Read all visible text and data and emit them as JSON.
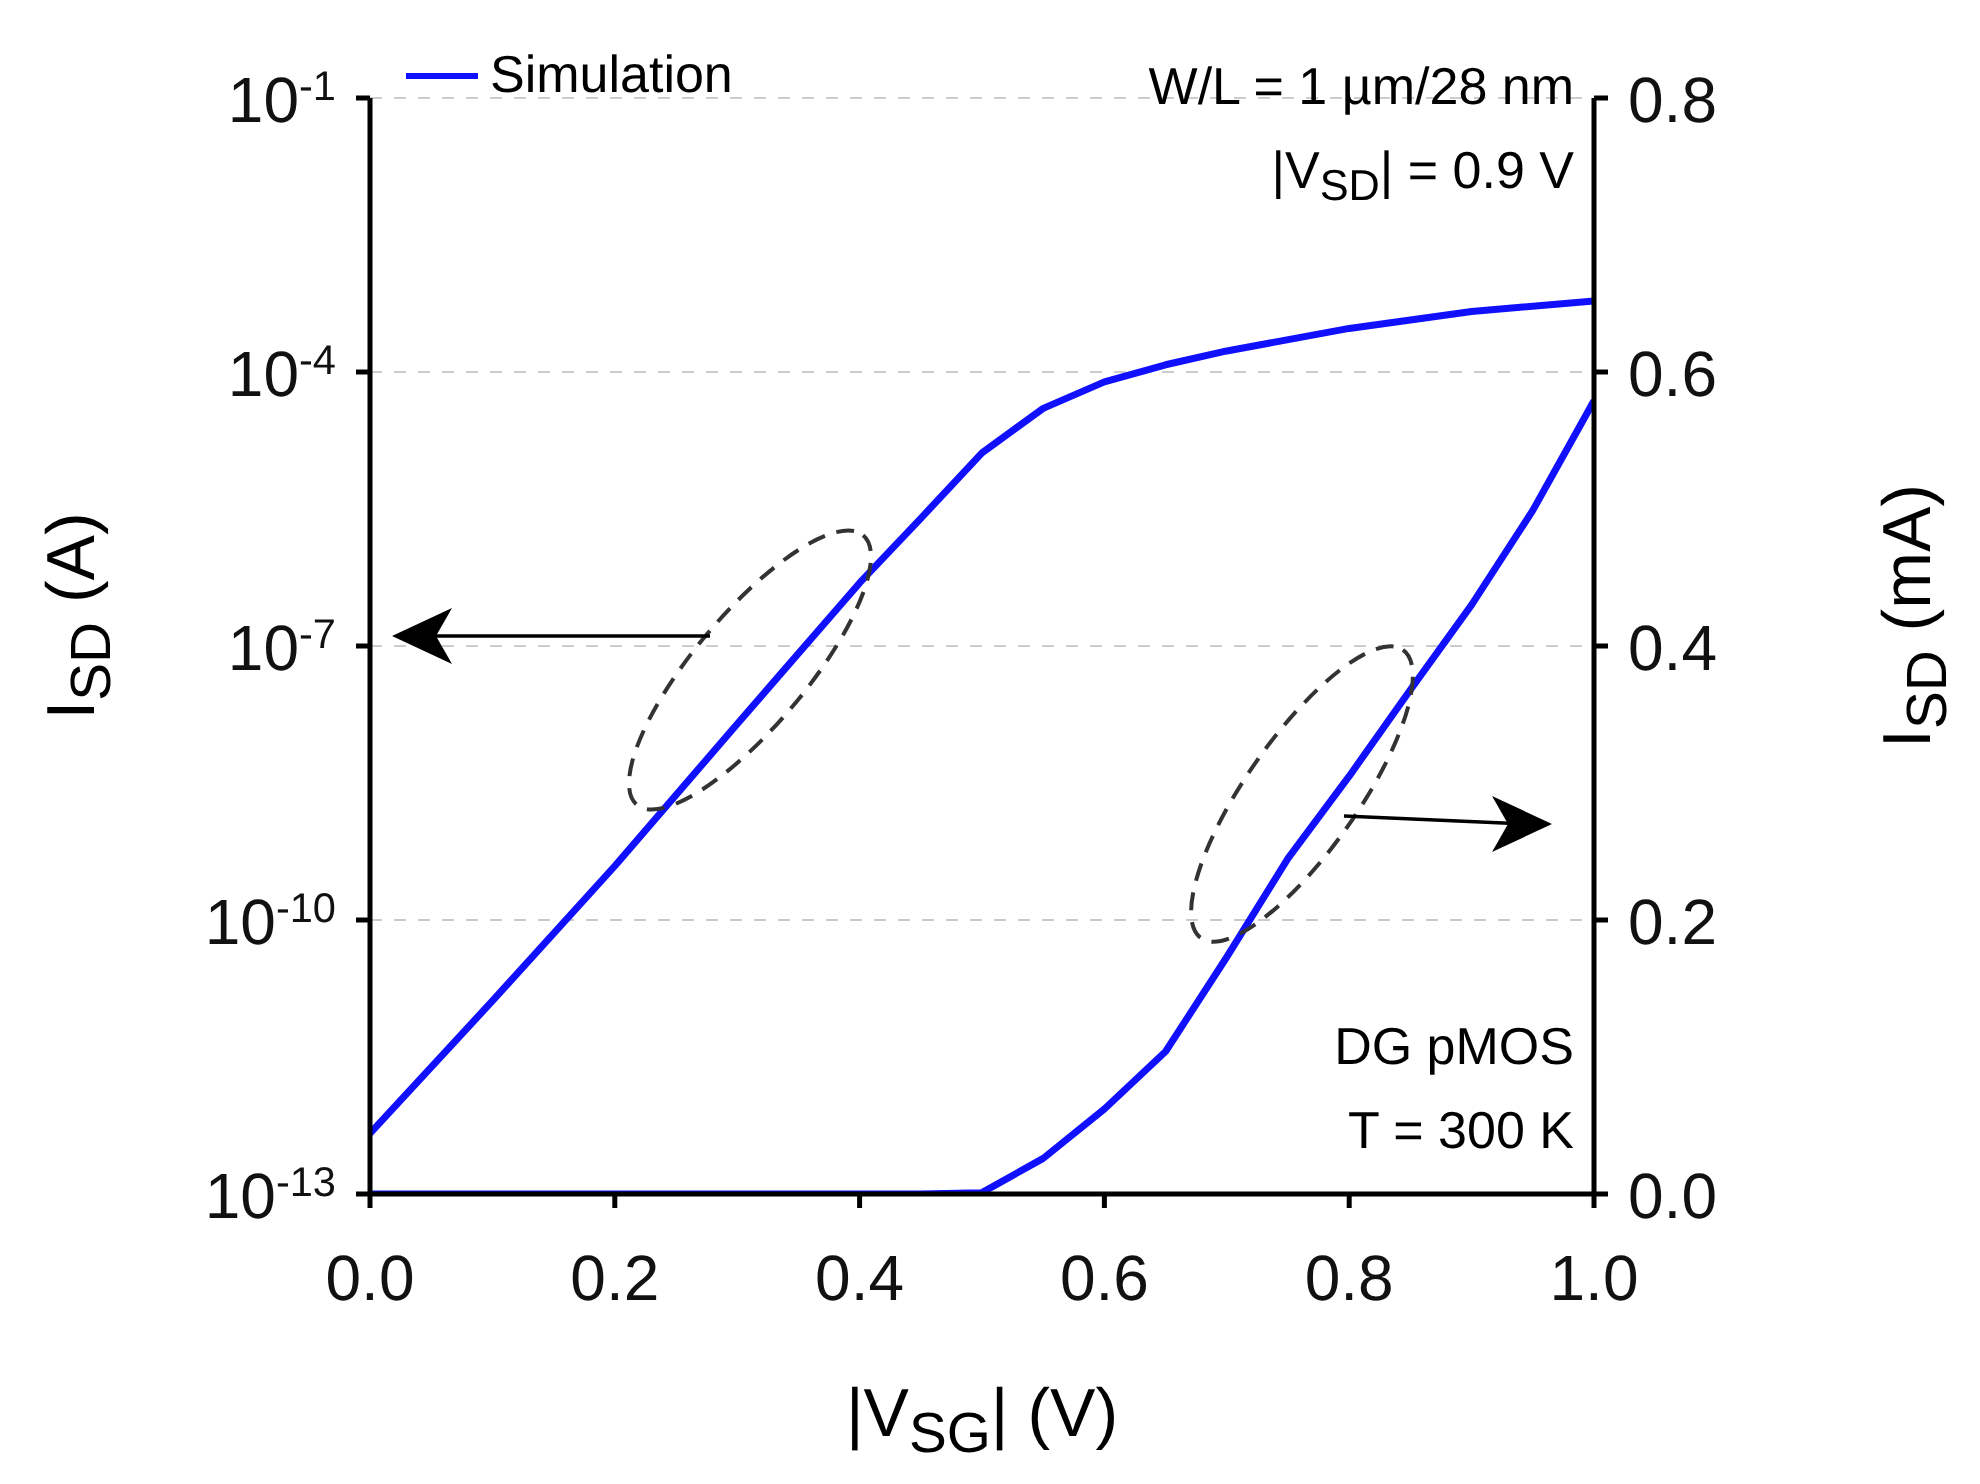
{
  "chart_data": {
    "type": "line",
    "xlabel": "|V$_{SG}$| (V)",
    "ylabel": "I$_{SD}$ (A)",
    "y2label": "I$_{SD}$ (mA)",
    "annotations": [
      "W/L = 1 µm/28 nm",
      "|V$_{SD}$| = 0.9 V",
      "DG pMOS",
      "T = 300 K"
    ],
    "series": [
      {
        "name": "Simulation",
        "color": "#1010ff",
        "x": [
          0,
          0.1,
          0.2,
          0.3,
          0.4,
          0.45,
          0.5,
          0.55,
          0.6,
          0.65,
          0.7,
          0.8,
          0.9,
          1.0
        ],
        "values": [
          4.6e-13,
          1.3e-11,
          3.9e-10,
          1.4e-08,
          4.9e-07,
          2.5e-06,
          1.3e-05,
          4e-05,
          7.8e-05,
          0.00012,
          0.00017,
          0.0003,
          0.00046,
          0.0006
        ]
      },
      {
        "color": "#1010ff",
        "axis": "y2",
        "x": [
          0,
          0.2,
          0.4,
          0.45,
          0.5,
          0.55,
          0.6,
          0.65,
          0.7,
          0.75,
          0.8,
          0.85,
          0.9,
          0.95,
          1.0
        ],
        "values": [
          0,
          0,
          0,
          0,
          0.001,
          0.026,
          0.062,
          0.104,
          0.173,
          0.245,
          0.305,
          0.368,
          0.43,
          0.499,
          0.579
        ]
      }
    ],
    "xlim": [
      0,
      1
    ],
    "xticks": [
      {
        "value": 0,
        "label": "0.0"
      },
      0.2,
      0.4,
      0.6,
      0.8,
      {
        "value": 1,
        "label": "1.0"
      }
    ],
    "ylim": [
      1e-13,
      0.1
    ],
    "yticks": [
      {
        "value": 1e-13,
        "label": "10$^{-13}$"
      },
      {
        "value": 1e-10,
        "label": "10$^{-10}$"
      },
      {
        "value": 1e-07,
        "label": "10$^{-7}$"
      },
      {
        "value": 0.0001,
        "label": "10$^{-4}$"
      },
      {
        "value": 0.1,
        "label": "10$^{-1}$"
      }
    ],
    "y2lim": [
      0,
      0.8
    ],
    "y2ticks": [
      {
        "value": 0,
        "label": "0.0"
      },
      0.2,
      0.4,
      0.6,
      0.8
    ],
    "log": "y",
    "grid": true,
    "legend": "top left",
    "marker": "none",
    "line_style": "solid"
  }
}
